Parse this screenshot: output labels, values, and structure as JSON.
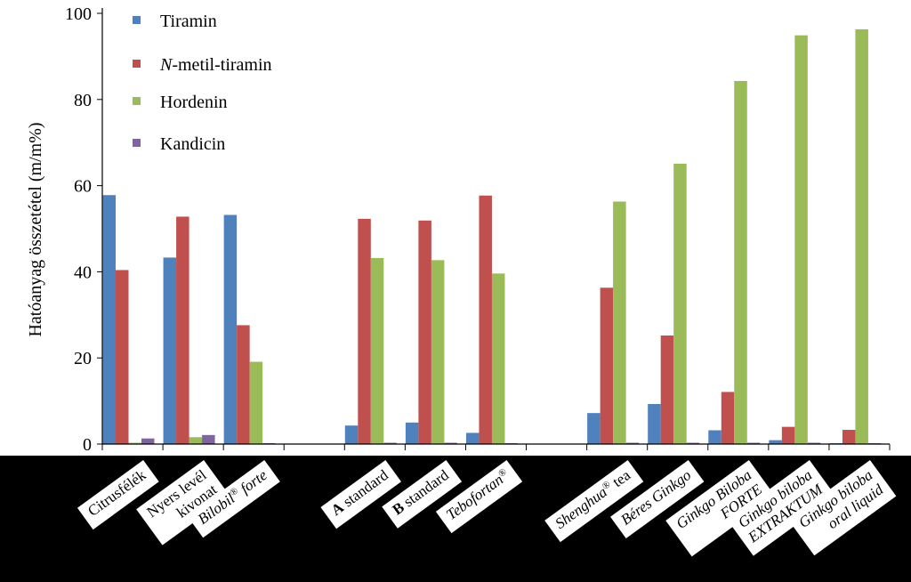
{
  "chart_data": {
    "type": "bar",
    "title": "",
    "xlabel": "",
    "ylabel": "Hatóanyag összetétel (m/m%)",
    "ylim": [
      0,
      100
    ],
    "yticks": [
      0,
      20,
      40,
      60,
      80,
      100
    ],
    "grid": false,
    "legend_position": "top-left",
    "categories": [
      {
        "parts": [
          {
            "text": "Citrusfélék",
            "style": "normal"
          }
        ]
      },
      {
        "parts": [
          {
            "text": "Nyers levél",
            "style": "normal"
          },
          {
            "text": "kivonat",
            "style": "normal",
            "newline": true
          }
        ]
      },
      {
        "parts": [
          {
            "text": "Bilobil",
            "style": "italic"
          },
          {
            "text": "®",
            "style": "sup"
          },
          {
            "text": " forte",
            "style": "italic"
          }
        ]
      },
      {
        "parts": []
      },
      {
        "parts": [
          {
            "text": "A",
            "style": "bold"
          },
          {
            "text": " standard",
            "style": "normal"
          }
        ]
      },
      {
        "parts": [
          {
            "text": "B",
            "style": "bold"
          },
          {
            "text": " standard",
            "style": "normal"
          }
        ]
      },
      {
        "parts": [
          {
            "text": "Tebofortan",
            "style": "italic"
          },
          {
            "text": "®",
            "style": "sup"
          }
        ]
      },
      {
        "parts": []
      },
      {
        "parts": [
          {
            "text": "Shenghua",
            "style": "italic"
          },
          {
            "text": "®",
            "style": "sup"
          },
          {
            "text": " tea",
            "style": "normal"
          }
        ]
      },
      {
        "parts": [
          {
            "text": "Béres Ginkgo",
            "style": "italic"
          }
        ]
      },
      {
        "parts": [
          {
            "text": "Ginkgo Biloba",
            "style": "italic"
          },
          {
            "text": "FORTE",
            "style": "italic",
            "newline": true
          }
        ]
      },
      {
        "parts": [
          {
            "text": "Ginkgo biloba",
            "style": "italic"
          },
          {
            "text": "EXTRAKTUM",
            "style": "italic",
            "newline": true
          }
        ]
      },
      {
        "parts": [
          {
            "text": "Ginkgo biloba",
            "style": "italic"
          },
          {
            "text": "oral liquid",
            "style": "italic",
            "newline": true
          }
        ]
      }
    ],
    "series": [
      {
        "name": "Tiramin",
        "name_parts": [
          {
            "text": "Tiramin",
            "style": "normal"
          }
        ],
        "color": "#4f81bd",
        "values": [
          57.8,
          43.3,
          53.2,
          null,
          4.3,
          5.0,
          2.6,
          null,
          7.2,
          9.3,
          3.2,
          0.9,
          0.2
        ]
      },
      {
        "name": "N-metil-tiramin",
        "name_parts": [
          {
            "text": "N",
            "style": "italic"
          },
          {
            "text": "-metil-tiramin",
            "style": "normal"
          }
        ],
        "color": "#c0504d",
        "values": [
          40.4,
          52.8,
          27.6,
          null,
          52.3,
          51.9,
          57.7,
          null,
          36.3,
          25.2,
          12.1,
          4.0,
          3.3
        ]
      },
      {
        "name": "Hordenin",
        "name_parts": [
          {
            "text": "Hordenin",
            "style": "normal"
          }
        ],
        "color": "#9bbb59",
        "values": [
          0.3,
          1.6,
          19.1,
          null,
          43.2,
          42.7,
          39.6,
          null,
          56.3,
          65.1,
          84.3,
          94.9,
          96.3
        ]
      },
      {
        "name": "Kandicin",
        "name_parts": [
          {
            "text": "Kandicin",
            "style": "normal"
          }
        ],
        "color": "#8064a2",
        "values": [
          1.3,
          2.1,
          0.2,
          null,
          0.3,
          0.3,
          0.2,
          null,
          0.3,
          0.3,
          0.3,
          0.3,
          0.2
        ]
      }
    ]
  }
}
